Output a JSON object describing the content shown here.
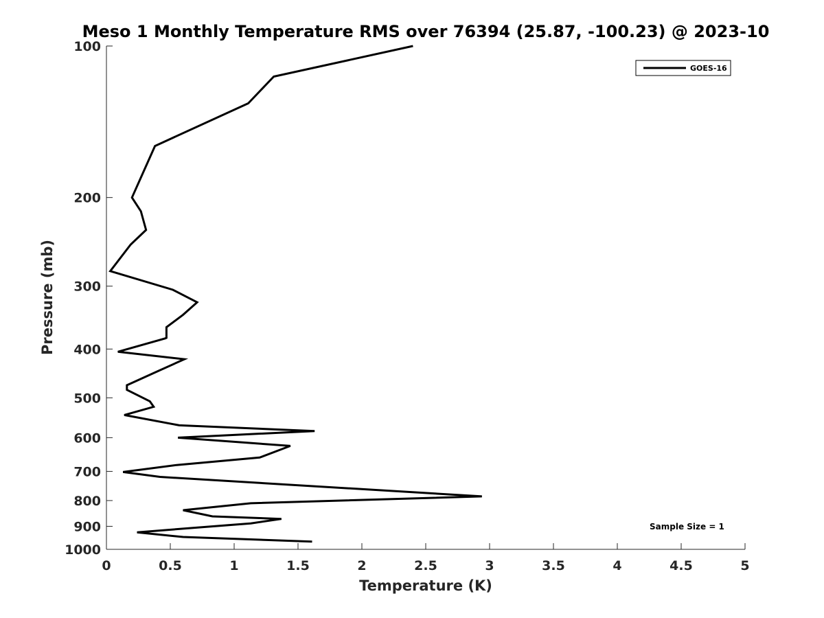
{
  "chart_data": {
    "type": "line",
    "title": "Meso 1 Monthly Temperature RMS over 76394 (25.87, -100.23) @ 2023-10",
    "xlabel": "Temperature (K)",
    "ylabel": "Pressure (mb)",
    "xlim": [
      0,
      5
    ],
    "ylim": [
      100,
      1000
    ],
    "y_scale": "log",
    "y_reversed": true,
    "x_ticks": [
      "0",
      "0.5",
      "1",
      "1.5",
      "2",
      "2.5",
      "3",
      "3.5",
      "4",
      "4.5",
      "5"
    ],
    "y_ticks": [
      "100",
      "200",
      "300",
      "400",
      "500",
      "600",
      "700",
      "800",
      "900",
      "1000"
    ],
    "grid": false,
    "legend_position": "top-right",
    "annotation": "Sample Size = 1",
    "series": [
      {
        "name": "GOES-16",
        "color": "#000000",
        "x": [
          2.4,
          1.31,
          1.11,
          0.38,
          0.2,
          0.27,
          0.31,
          0.19,
          0.03,
          0.52,
          0.71,
          0.6,
          0.47,
          0.47,
          0.46,
          0.09,
          0.61,
          0.4,
          0.16,
          0.16,
          0.34,
          0.37,
          0.14,
          0.57,
          1.63,
          0.56,
          1.44,
          1.2,
          0.55,
          0.13,
          0.42,
          2.94,
          1.13,
          0.6,
          0.83,
          1.37,
          1.13,
          0.24,
          0.6,
          1.61
        ],
        "y": [
          100,
          115,
          130,
          158,
          200,
          213,
          232,
          248,
          280,
          305,
          323,
          342,
          362,
          380,
          381,
          405,
          419,
          443,
          472,
          482,
          508,
          521,
          541,
          567,
          582,
          600,
          623,
          657,
          680,
          702,
          718,
          785,
          810,
          836,
          860,
          870,
          888,
          925,
          945,
          965
        ]
      }
    ]
  }
}
